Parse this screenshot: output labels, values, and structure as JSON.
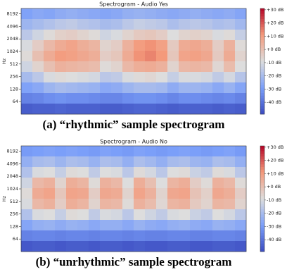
{
  "chart_data": [
    {
      "type": "heatmap",
      "title": "Spectrogram - Audio Yes",
      "caption": "(a) “rhythmic” sample spectrogram",
      "ylabel": "Hz",
      "yscale": "symlog",
      "ylim": [
        0,
        11025
      ],
      "yticks": [
        64,
        128,
        256,
        512,
        1024,
        2048,
        4096,
        8192
      ],
      "colormap": "coolwarm",
      "clim": [
        -49,
        31
      ],
      "cticks": [
        {
          "value": 30,
          "label": "+30 dB"
        },
        {
          "value": 20,
          "label": "+20 dB"
        },
        {
          "value": 10,
          "label": "+10 dB"
        },
        {
          "value": 0,
          "label": "+0 dB"
        },
        {
          "value": -10,
          "label": "-10 dB"
        },
        {
          "value": -20,
          "label": "-20 dB"
        },
        {
          "value": -30,
          "label": "-30 dB"
        },
        {
          "value": -40,
          "label": "-40 dB"
        }
      ],
      "z": [
        [
          -28,
          -26,
          -27,
          -25,
          -24,
          -25,
          -26,
          -27,
          -26,
          -24,
          -23,
          -24,
          -25,
          -26,
          -25,
          -24,
          -25,
          -26,
          -25,
          -27
        ],
        [
          -22,
          -20,
          -18,
          -16,
          -15,
          -17,
          -18,
          -20,
          -19,
          -16,
          -14,
          -15,
          -16,
          -19,
          -17,
          -16,
          -17,
          -19,
          -18,
          -21
        ],
        [
          -16,
          -12,
          -8,
          -5,
          -4,
          -6,
          -8,
          -12,
          -10,
          -6,
          -3,
          -2,
          -4,
          -9,
          -6,
          -5,
          -6,
          -10,
          -8,
          -14
        ],
        [
          -10,
          -4,
          2,
          6,
          8,
          5,
          3,
          -6,
          -4,
          4,
          10,
          12,
          9,
          -3,
          6,
          7,
          5,
          -4,
          4,
          -8
        ],
        [
          -8,
          0,
          6,
          10,
          9,
          7,
          5,
          -4,
          -2,
          6,
          12,
          14,
          11,
          -2,
          8,
          9,
          7,
          -3,
          6,
          -6
        ],
        [
          -12,
          -6,
          0,
          4,
          3,
          2,
          1,
          -8,
          -6,
          2,
          5,
          6,
          4,
          -6,
          2,
          3,
          2,
          -7,
          1,
          -9
        ],
        [
          -20,
          -16,
          -10,
          -8,
          -9,
          -10,
          -11,
          -16,
          -15,
          -10,
          -8,
          -7,
          -9,
          -14,
          -10,
          -10,
          -11,
          -15,
          -11,
          -17
        ],
        [
          -28,
          -26,
          -22,
          -20,
          -21,
          -22,
          -23,
          -26,
          -25,
          -22,
          -20,
          -20,
          -21,
          -25,
          -22,
          -22,
          -23,
          -26,
          -23,
          -27
        ],
        [
          -36,
          -35,
          -33,
          -32,
          -33,
          -33,
          -34,
          -35,
          -35,
          -33,
          -32,
          -32,
          -33,
          -35,
          -33,
          -33,
          -34,
          -35,
          -34,
          -36
        ],
        [
          -45,
          -44,
          -44,
          -43,
          -44,
          -44,
          -44,
          -45,
          -45,
          -44,
          -43,
          -43,
          -44,
          -45,
          -44,
          -44,
          -44,
          -45,
          -44,
          -45
        ]
      ]
    },
    {
      "type": "heatmap",
      "title": "Spectrogram - Audio No",
      "caption": "(b) “unrhythmic” sample spectrogram",
      "ylabel": "Hz",
      "yscale": "symlog",
      "ylim": [
        0,
        11025
      ],
      "yticks": [
        64,
        128,
        256,
        512,
        1024,
        2048,
        4096,
        8192
      ],
      "colormap": "coolwarm",
      "clim": [
        -49,
        31
      ],
      "cticks": [
        {
          "value": 30,
          "label": "+30 dB"
        },
        {
          "value": 20,
          "label": "+20 dB"
        },
        {
          "value": 10,
          "label": "+10 dB"
        },
        {
          "value": 0,
          "label": "+0 dB"
        },
        {
          "value": -10,
          "label": "-10 dB"
        },
        {
          "value": -20,
          "label": "-20 dB"
        },
        {
          "value": -30,
          "label": "-30 dB"
        },
        {
          "value": -40,
          "label": "-40 dB"
        }
      ],
      "z": [
        [
          -30,
          -29,
          -28,
          -29,
          -28,
          -29,
          -30,
          -28,
          -29,
          -30,
          -28,
          -29,
          -30,
          -29,
          -28,
          -29,
          -30,
          -29,
          -28,
          -30
        ],
        [
          -24,
          -20,
          -19,
          -22,
          -19,
          -20,
          -23,
          -19,
          -20,
          -24,
          -19,
          -21,
          -24,
          -20,
          -19,
          -22,
          -23,
          -19,
          -20,
          -24
        ],
        [
          -18,
          -10,
          -9,
          -14,
          -8,
          -9,
          -15,
          -9,
          -10,
          -16,
          -8,
          -11,
          -16,
          -9,
          -8,
          -13,
          -15,
          -8,
          -10,
          -16
        ],
        [
          -12,
          2,
          4,
          -6,
          5,
          3,
          -8,
          4,
          2,
          -9,
          5,
          0,
          -9,
          3,
          5,
          -4,
          -8,
          4,
          2,
          -8
        ],
        [
          -8,
          6,
          8,
          -2,
          8,
          7,
          -4,
          7,
          6,
          -6,
          8,
          4,
          -6,
          7,
          8,
          -1,
          -5,
          7,
          5,
          -4
        ],
        [
          -10,
          2,
          4,
          -4,
          5,
          3,
          -6,
          3,
          2,
          -8,
          4,
          1,
          -7,
          3,
          4,
          -3,
          -6,
          3,
          2,
          -6
        ],
        [
          -18,
          -10,
          -9,
          -14,
          -8,
          -9,
          -15,
          -10,
          -11,
          -16,
          -9,
          -12,
          -15,
          -10,
          -9,
          -13,
          -15,
          -9,
          -11,
          -16
        ],
        [
          -27,
          -24,
          -23,
          -25,
          -23,
          -24,
          -26,
          -24,
          -24,
          -26,
          -23,
          -25,
          -26,
          -24,
          -23,
          -25,
          -26,
          -23,
          -24,
          -26
        ],
        [
          -36,
          -35,
          -35,
          -36,
          -35,
          -35,
          -36,
          -35,
          -35,
          -36,
          -35,
          -36,
          -36,
          -35,
          -35,
          -36,
          -36,
          -35,
          -35,
          -36
        ],
        [
          -46,
          -45,
          -45,
          -46,
          -45,
          -45,
          -46,
          -45,
          -45,
          -46,
          -45,
          -46,
          -46,
          -45,
          -45,
          -46,
          -46,
          -45,
          -45,
          -46
        ]
      ]
    }
  ]
}
